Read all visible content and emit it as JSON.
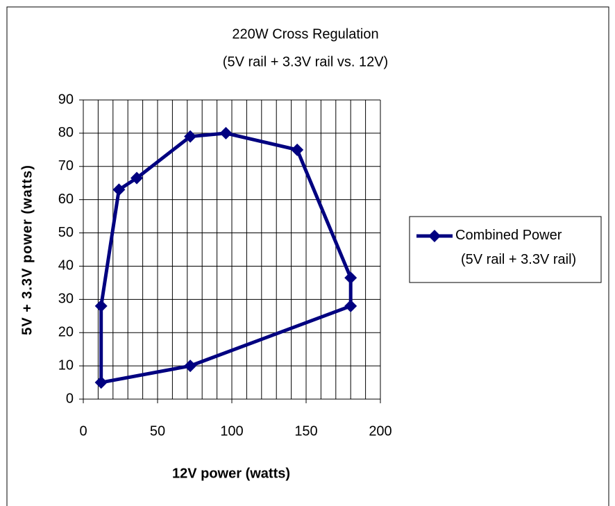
{
  "chart_data": {
    "type": "line",
    "title": "220W Cross Regulation",
    "subtitle": "(5V rail + 3.3V rail vs. 12V)",
    "x_label": "12V power (watts)",
    "y_label": "5V + 3.3V power (watts)",
    "xlim": [
      0,
      200
    ],
    "xticks": [
      0,
      50,
      100,
      150,
      200
    ],
    "xgrid": [
      0,
      10,
      20,
      30,
      40,
      50,
      60,
      70,
      80,
      90,
      100,
      110,
      120,
      130,
      140,
      150,
      160,
      170,
      180,
      190,
      200
    ],
    "ylim": [
      0,
      90
    ],
    "yticks": [
      0,
      10,
      20,
      30,
      40,
      50,
      60,
      70,
      80,
      90
    ],
    "grid": true,
    "legend": "right",
    "series": [
      {
        "name": "Combined Power\n(5V rail + 3.3V rail)",
        "color": "#000080",
        "x": [
          12,
          12,
          24,
          36,
          72,
          96,
          144,
          180,
          180,
          72,
          12
        ],
        "values": [
          5,
          28,
          63,
          66.5,
          79,
          80,
          75,
          36.5,
          28,
          10,
          5
        ]
      }
    ]
  }
}
